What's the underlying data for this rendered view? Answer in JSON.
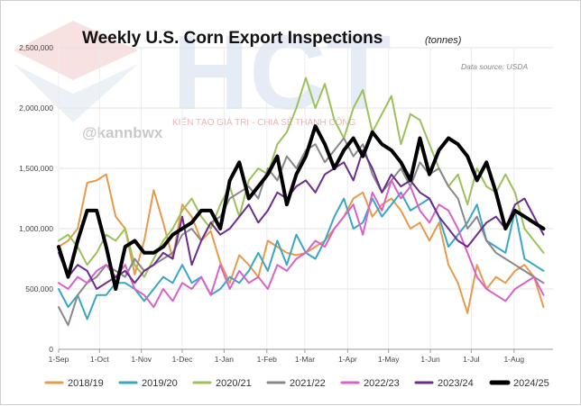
{
  "watermark": {
    "letters": "HCT",
    "slogan": "KIẾN TẠO GIÁ TRỊ - CHIA SẺ THÀNH CÔNG",
    "handle": "@kannbwx"
  },
  "chart_data": {
    "type": "line",
    "title": "Weekly U.S. Corn Export Inspections",
    "title_unit": "(tonnes)",
    "source_note": "Data source: USDA",
    "xlabel": "",
    "ylabel": "",
    "ylim": [
      0,
      2500000
    ],
    "yticks": [
      0,
      500000,
      1000000,
      1500000,
      2000000,
      2500000
    ],
    "ytick_labels": [
      "0",
      "500,000",
      "1,000,000",
      "1,500,000",
      "2,000,000",
      "2,500,000"
    ],
    "x_range_weeks": [
      0,
      52
    ],
    "xticks_weeks": [
      0,
      4.3,
      8.7,
      13,
      17.4,
      21.9,
      25.9,
      30.4,
      34.7,
      39.1,
      43.4,
      47.9
    ],
    "xtick_labels": [
      "1-Sep",
      "1-Oct",
      "1-Nov",
      "1-Dec",
      "1-Jan",
      "1-Feb",
      "1-Mar",
      "1-Apr",
      "1-May",
      "1-Jun",
      "1-Jul",
      "1-Aug"
    ],
    "grid": true,
    "legend_position": "bottom",
    "series": [
      {
        "name": "2018/19",
        "color": "#e69a4a",
        "width": 2,
        "values": [
          850000,
          900000,
          1000000,
          1380000,
          1400000,
          1450000,
          1100000,
          1000000,
          620000,
          900000,
          1320000,
          1050000,
          750000,
          1200000,
          1100000,
          900000,
          980000,
          720000,
          550000,
          780000,
          700000,
          600000,
          900000,
          850000,
          800000,
          780000,
          800000,
          850000,
          900000,
          1000000,
          1100000,
          1250000,
          1300000,
          1100000,
          1200000,
          1250000,
          1150000,
          1000000,
          1050000,
          900000,
          1050000,
          700000,
          550000,
          300000,
          700000,
          500000,
          600000,
          550000,
          650000,
          700000,
          600000,
          350000
        ]
      },
      {
        "name": "2019/20",
        "color": "#3aa6c4",
        "width": 2,
        "values": [
          500000,
          350000,
          450000,
          250000,
          450000,
          450000,
          550000,
          550000,
          500000,
          400000,
          500000,
          600000,
          550000,
          700000,
          550000,
          600000,
          450000,
          500000,
          600000,
          550000,
          650000,
          800000,
          650000,
          900000,
          700000,
          950000,
          800000,
          750000,
          900000,
          1100000,
          1250000,
          1000000,
          1050000,
          1250000,
          1100000,
          1200000,
          1300000,
          1150000,
          1200000,
          1250000,
          1100000,
          850000,
          950000,
          1050000,
          1200000,
          900000,
          850000,
          800000,
          1150000,
          750000,
          700000,
          650000
        ]
      },
      {
        "name": "2020/21",
        "color": "#9cc15a",
        "width": 2,
        "values": [
          900000,
          950000,
          850000,
          700000,
          800000,
          950000,
          900000,
          1000000,
          700000,
          600000,
          750000,
          900000,
          1000000,
          1150000,
          1250000,
          1100000,
          1000000,
          1200000,
          1350000,
          1100000,
          1400000,
          1500000,
          1450000,
          1700000,
          1800000,
          2000000,
          2250000,
          2000000,
          2200000,
          1900000,
          1750000,
          2000000,
          2150000,
          1800000,
          1950000,
          2100000,
          1700000,
          1950000,
          1900000,
          1700000,
          1500000,
          1350000,
          1450000,
          1200000,
          1500000,
          1350000,
          1300000,
          1450000,
          1300000,
          1000000,
          900000,
          800000
        ]
      },
      {
        "name": "2021/22",
        "color": "#888888",
        "width": 2,
        "values": [
          350000,
          200000,
          450000,
          550000,
          600000,
          700000,
          650000,
          600000,
          750000,
          650000,
          700000,
          750000,
          800000,
          950000,
          1000000,
          900000,
          1050000,
          1100000,
          1250000,
          1300000,
          1350000,
          1250000,
          1500000,
          1400000,
          1600000,
          1500000,
          1650000,
          1700000,
          1550000,
          1650000,
          1750000,
          1600000,
          1700000,
          1450000,
          1300000,
          1400000,
          1500000,
          1350000,
          1550000,
          1450000,
          1500000,
          1350000,
          1250000,
          1000000,
          1100000,
          900000,
          800000,
          750000,
          700000,
          650000,
          600000,
          550000
        ]
      },
      {
        "name": "2022/23",
        "color": "#d862c9",
        "width": 2,
        "values": [
          550000,
          500000,
          600000,
          550000,
          650000,
          700000,
          600000,
          700000,
          500000,
          450000,
          350000,
          500000,
          400000,
          550000,
          500000,
          600000,
          450000,
          700000,
          500000,
          650000,
          550000,
          600000,
          500000,
          700000,
          650000,
          750000,
          800000,
          900000,
          850000,
          1000000,
          1100000,
          1200000,
          950000,
          1300000,
          1150000,
          1400000,
          1250000,
          1350000,
          1150000,
          1050000,
          1200000,
          1150000,
          1000000,
          800000,
          600000,
          500000,
          450000,
          400000,
          500000,
          550000,
          600000,
          450000
        ]
      },
      {
        "name": "2023/24",
        "color": "#6b2d8c",
        "width": 2,
        "values": [
          800000,
          600000,
          700000,
          650000,
          500000,
          550000,
          600000,
          650000,
          550000,
          650000,
          700000,
          800000,
          750000,
          1100000,
          700000,
          900000,
          1050000,
          950000,
          1000000,
          1100000,
          1200000,
          1050000,
          1150000,
          1300000,
          1250000,
          1350000,
          1400000,
          1300000,
          1450000,
          1500000,
          1550000,
          1400000,
          1650000,
          1500000,
          1300000,
          1450000,
          1350000,
          1400000,
          1300000,
          1250000,
          1100000,
          1000000,
          900000,
          850000,
          950000,
          1050000,
          1100000,
          1000000,
          1200000,
          1250000,
          1100000,
          950000
        ]
      },
      {
        "name": "2024/25",
        "color": "#000000",
        "width": 4,
        "values": [
          850000,
          600000,
          900000,
          1150000,
          1150000,
          850000,
          500000,
          850000,
          900000,
          800000,
          800000,
          850000,
          950000,
          1000000,
          1050000,
          1150000,
          1150000,
          1000000,
          1400000,
          1550000,
          1250000,
          1350000,
          1450000,
          1600000,
          1200000,
          1450000,
          1600000,
          1850000,
          1700000,
          1500000,
          1650000,
          1750000,
          1600000,
          1800000,
          1700000,
          1650000,
          1550000,
          1400000,
          1750000,
          1450000,
          1650000,
          1750000,
          1700000,
          1600000,
          1400000,
          1550000,
          1300000,
          1000000,
          1150000,
          1100000,
          1050000,
          1000000
        ]
      }
    ]
  }
}
